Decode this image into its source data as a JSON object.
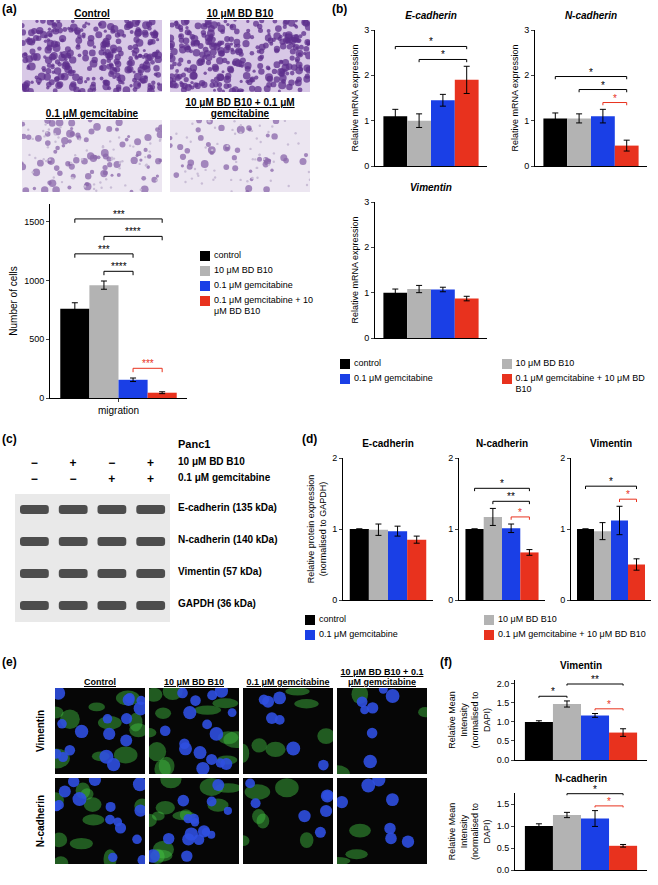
{
  "panels": {
    "a": {
      "letter": "(a)",
      "images": [
        "Control",
        "10 μM BD B10",
        "0.1 μM gemcitabine",
        "10 μM BD B10 + 0.1 μM gemcitabine"
      ]
    },
    "b": {
      "letter": "(b)"
    },
    "c": {
      "letter": "(c)",
      "blot": {
        "cell_line": "Panc1",
        "conditions": [
          {
            "label": "10 μM BD B10",
            "signs": [
              "−",
              "+",
              "−",
              "+"
            ]
          },
          {
            "label": "0.1 μM gemcitabine",
            "signs": [
              "−",
              "−",
              "+",
              "+"
            ]
          }
        ],
        "rows": [
          "E-cadherin (135 kDa)",
          "N-cadherin (140 kDa)",
          "Vimentin (57 kDa)",
          "GAPDH (36 kDa)"
        ]
      }
    },
    "d": {
      "letter": "(d)"
    },
    "e": {
      "letter": "(e)",
      "columns": [
        "Control",
        "10 μM BD B10",
        "0.1 μM gemcitabine",
        "10 μM BD B10 + 0.1 μM gemcitabine"
      ],
      "rows": [
        "Vimentin",
        "N-cadherin"
      ]
    },
    "f": {
      "letter": "(f)"
    }
  },
  "chart_data": [
    {
      "panel": "a",
      "type": "bar",
      "y_label": "Number of cells",
      "categories": [
        "migration"
      ],
      "series": [
        {
          "name": "control",
          "color": "#000000",
          "values": [
            760
          ],
          "error": [
            50
          ]
        },
        {
          "name": "10 μM BD B10",
          "color": "#b3b3b3",
          "values": [
            960
          ],
          "error": [
            35
          ]
        },
        {
          "name": "0.1 μM gemcitabine",
          "color": "#1a3fe6",
          "values": [
            155
          ],
          "error": [
            15
          ]
        },
        {
          "name": "0.1 μM gemcitabine + 10 μM BD B10",
          "color": "#e8321e",
          "values": [
            45
          ],
          "error": [
            8
          ]
        }
      ],
      "ylim": [
        0,
        1650
      ],
      "yticks": [
        0,
        500,
        1000,
        1500
      ],
      "grid": false,
      "legend": "right",
      "significance": [
        {
          "from": 0,
          "to": 2,
          "label": "***",
          "color": "#000000"
        },
        {
          "from": 0,
          "to": 3,
          "label": "***",
          "color": "#000000"
        },
        {
          "from": 1,
          "to": 2,
          "label": "****",
          "color": "#000000"
        },
        {
          "from": 1,
          "to": 3,
          "label": "****",
          "color": "#000000"
        },
        {
          "from": 2,
          "to": 3,
          "label": "***",
          "color": "#e8321e"
        }
      ]
    },
    {
      "panel": "b",
      "type": "bar",
      "title": "E-cadherin",
      "y_label": "Relative mRNA expression",
      "categories": [
        null
      ],
      "series": [
        {
          "color": "#000000",
          "values": [
            1.1
          ],
          "error": [
            0.15
          ]
        },
        {
          "color": "#b3b3b3",
          "values": [
            1.0
          ],
          "error": [
            0.15
          ]
        },
        {
          "color": "#1a3fe6",
          "values": [
            1.45
          ],
          "error": [
            0.13
          ]
        },
        {
          "color": "#e8321e",
          "values": [
            1.9
          ],
          "error": [
            0.3
          ]
        }
      ],
      "ylim": [
        0,
        3
      ],
      "yticks": [
        0,
        1,
        2,
        3
      ],
      "grid": false,
      "tick_labels": "y",
      "significance": [
        {
          "from": 0,
          "to": 3,
          "label": "*",
          "color": "#000000"
        },
        {
          "from": 1,
          "to": 3,
          "label": "*",
          "color": "#000000"
        }
      ]
    },
    {
      "panel": "b",
      "type": "bar",
      "title": "N-cadherin",
      "y_label": "Relative mRNA expression",
      "categories": [
        null
      ],
      "series": [
        {
          "color": "#000000",
          "values": [
            1.05
          ],
          "error": [
            0.12
          ]
        },
        {
          "color": "#b3b3b3",
          "values": [
            1.05
          ],
          "error": [
            0.1
          ]
        },
        {
          "color": "#1a3fe6",
          "values": [
            1.1
          ],
          "error": [
            0.15
          ]
        },
        {
          "color": "#e8321e",
          "values": [
            0.45
          ],
          "error": [
            0.12
          ]
        }
      ],
      "ylim": [
        0,
        3
      ],
      "yticks": [
        0,
        1,
        2,
        3
      ],
      "grid": false,
      "tick_labels": "y",
      "significance": [
        {
          "from": 0,
          "to": 3,
          "label": "*",
          "color": "#000000"
        },
        {
          "from": 1,
          "to": 3,
          "label": "*",
          "color": "#000000"
        },
        {
          "from": 2,
          "to": 3,
          "label": "*",
          "color": "#e8321e"
        }
      ]
    },
    {
      "panel": "b",
      "type": "bar",
      "title": "Vimentin",
      "y_label": "Relative mRNA expression",
      "categories": [
        null
      ],
      "series": [
        {
          "name": "control",
          "color": "#000000",
          "values": [
            1.0
          ],
          "error": [
            0.08
          ]
        },
        {
          "name": "10 μM BD B10",
          "color": "#b3b3b3",
          "values": [
            1.08
          ],
          "error": [
            0.08
          ]
        },
        {
          "name": "0.1 μM gemcitabine",
          "color": "#1a3fe6",
          "values": [
            1.07
          ],
          "error": [
            0.05
          ]
        },
        {
          "name": "0.1 μM gemcitabine + 10 μM BD B10",
          "color": "#e8321e",
          "values": [
            0.87
          ],
          "error": [
            0.05
          ]
        }
      ],
      "ylim": [
        0,
        3
      ],
      "yticks": [
        0,
        1,
        2,
        3
      ],
      "grid": false,
      "tick_labels": "y",
      "legend": "bottom",
      "significance": []
    },
    {
      "panel": "d",
      "type": "bar",
      "title": "E-cadherin",
      "y_label": "Relative protein expression (normalised to GAPDH)",
      "categories": [
        null
      ],
      "series": [
        {
          "name": "control",
          "color": "#000000",
          "values": [
            1.0
          ],
          "error": [
            0
          ]
        },
        {
          "name": "10 μM BD B10",
          "color": "#b3b3b3",
          "values": [
            0.99
          ],
          "error": [
            0.08
          ]
        },
        {
          "name": "0.1 μM gemcitabine",
          "color": "#1a3fe6",
          "values": [
            0.97
          ],
          "error": [
            0.07
          ]
        },
        {
          "name": "0.1 μM gemcitabine + 10 μM BD B10",
          "color": "#e8321e",
          "values": [
            0.85
          ],
          "error": [
            0.05
          ]
        }
      ],
      "ylim": [
        0,
        2
      ],
      "yticks": [
        0,
        1,
        2
      ],
      "grid": false,
      "tick_labels": "y",
      "legend": "bottom",
      "significance": []
    },
    {
      "panel": "d",
      "type": "bar",
      "title": "N-cadherin",
      "categories": [
        null
      ],
      "series": [
        {
          "color": "#000000",
          "values": [
            1.0
          ],
          "error": [
            0
          ]
        },
        {
          "color": "#b3b3b3",
          "values": [
            1.17
          ],
          "error": [
            0.12
          ]
        },
        {
          "color": "#1a3fe6",
          "values": [
            1.01
          ],
          "error": [
            0.06
          ]
        },
        {
          "color": "#e8321e",
          "values": [
            0.67
          ],
          "error": [
            0.04
          ]
        }
      ],
      "ylim": [
        0,
        2
      ],
      "yticks": [
        0,
        1,
        2
      ],
      "grid": false,
      "tick_labels": "y",
      "significance": [
        {
          "from": 0,
          "to": 3,
          "label": "*",
          "color": "#000000"
        },
        {
          "from": 1,
          "to": 3,
          "label": "**",
          "color": "#000000"
        },
        {
          "from": 2,
          "to": 3,
          "label": "*",
          "color": "#e8321e"
        }
      ]
    },
    {
      "panel": "d",
      "type": "bar",
      "title": "Vimentin",
      "categories": [
        null
      ],
      "series": [
        {
          "color": "#000000",
          "values": [
            1.0
          ],
          "error": [
            0
          ]
        },
        {
          "color": "#b3b3b3",
          "values": [
            0.97
          ],
          "error": [
            0.12
          ]
        },
        {
          "color": "#1a3fe6",
          "values": [
            1.12
          ],
          "error": [
            0.2
          ]
        },
        {
          "color": "#e8321e",
          "values": [
            0.5
          ],
          "error": [
            0.08
          ]
        }
      ],
      "ylim": [
        0,
        2
      ],
      "yticks": [
        0,
        1,
        2
      ],
      "grid": false,
      "tick_labels": "y",
      "significance": [
        {
          "from": 0,
          "to": 3,
          "label": "*",
          "color": "#000000"
        },
        {
          "from": 2,
          "to": 3,
          "label": "*",
          "color": "#e8321e"
        }
      ]
    },
    {
      "panel": "f",
      "type": "bar",
      "title": "Vimentin",
      "y_label": "Relative Mean Intensity (normalised to DAPI)",
      "categories": [
        null
      ],
      "series": [
        {
          "color": "#000000",
          "values": [
            1.0
          ],
          "error": [
            0.03
          ]
        },
        {
          "color": "#b3b3b3",
          "values": [
            1.47
          ],
          "error": [
            0.08
          ]
        },
        {
          "color": "#1a3fe6",
          "values": [
            1.17
          ],
          "error": [
            0.05
          ]
        },
        {
          "color": "#e8321e",
          "values": [
            0.72
          ],
          "error": [
            0.1
          ]
        }
      ],
      "ylim": [
        0,
        2.1
      ],
      "yticks": [
        {
          "value": 0,
          "label": "0.0"
        },
        {
          "value": 0.5,
          "label": "0.5"
        },
        {
          "value": 1,
          "label": "1.0"
        },
        {
          "value": 1.5,
          "label": "1.5"
        },
        {
          "value": 2,
          "label": "2.0"
        }
      ],
      "grid": false,
      "tick_labels": "y",
      "significance": [
        {
          "from": 0,
          "to": 1,
          "label": "*",
          "color": "#000000"
        },
        {
          "from": 1,
          "to": 3,
          "label": "**",
          "color": "#000000"
        },
        {
          "from": 2,
          "to": 3,
          "label": "*",
          "color": "#e8321e"
        }
      ]
    },
    {
      "panel": "f",
      "type": "bar",
      "title": "N-cadherin",
      "y_label": "Relative Mean Intensity (normalised to DAPI)",
      "categories": [
        null
      ],
      "series": [
        {
          "color": "#000000",
          "values": [
            1.0
          ],
          "error": [
            0.05
          ]
        },
        {
          "color": "#b3b3b3",
          "values": [
            1.25
          ],
          "error": [
            0.06
          ]
        },
        {
          "color": "#1a3fe6",
          "values": [
            1.17
          ],
          "error": [
            0.18
          ]
        },
        {
          "color": "#e8321e",
          "values": [
            0.55
          ],
          "error": [
            0.03
          ]
        }
      ],
      "ylim": [
        0,
        1.75
      ],
      "yticks": [
        {
          "value": 0,
          "label": "0.0"
        },
        {
          "value": 0.5,
          "label": "0.5"
        },
        {
          "value": 1,
          "label": "1.0"
        },
        {
          "value": 1.5,
          "label": "1.5"
        }
      ],
      "grid": false,
      "tick_labels": "y",
      "significance": [
        {
          "from": 1,
          "to": 3,
          "label": "*",
          "color": "#000000"
        },
        {
          "from": 2,
          "to": 3,
          "label": "*",
          "color": "#e8321e"
        }
      ]
    }
  ]
}
